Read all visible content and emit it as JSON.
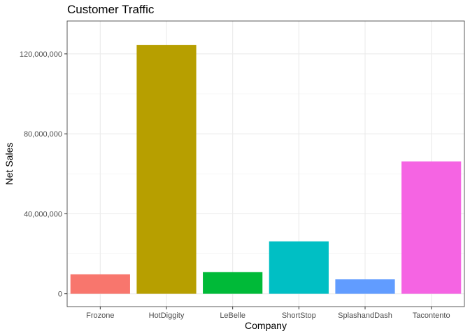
{
  "chart_data": {
    "type": "bar",
    "title": "Customer Traffic",
    "xlabel": "Company",
    "ylabel": "Net Sales",
    "categories": [
      "Frozone",
      "HotDiggity",
      "LeBelle",
      "ShortStop",
      "SplashandDash",
      "Tacontento"
    ],
    "values": [
      9700000,
      124500000,
      10800000,
      26200000,
      7200000,
      66200000
    ],
    "colors": [
      "#F8766D",
      "#B79F00",
      "#00BA38",
      "#00BFC4",
      "#619CFF",
      "#F564E3"
    ],
    "ylim": [
      0,
      130000000
    ],
    "yticks": [
      0,
      40000000,
      80000000,
      120000000
    ],
    "ytick_labels": [
      "0",
      "40,000,000",
      "80,000,000",
      "120,000,000"
    ],
    "grid": true,
    "legend": "none"
  }
}
